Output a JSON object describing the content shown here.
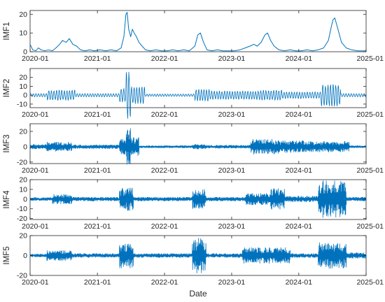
{
  "chart_data": [
    {
      "type": "line",
      "ylabel": "IMF1",
      "ylim": [
        0,
        22
      ],
      "yticks": [
        0,
        10,
        20
      ],
      "x_range": [
        "2020-01",
        "2025-01"
      ],
      "xticks": [
        "2020-01",
        "2021-01",
        "2022-01",
        "2023-01",
        "2024-01",
        "2025-01"
      ],
      "line_color": "#0072BD",
      "series": [
        {
          "x": [
            "2020-01-01",
            "2020-01-15",
            "2020-02-01",
            "2020-02-15",
            "2020-03-01",
            "2020-03-20",
            "2020-04-10",
            "2020-05-01",
            "2020-05-20",
            "2020-06-10",
            "2020-06-25",
            "2020-07-15",
            "2020-08-01",
            "2020-08-20",
            "2020-09-10",
            "2020-10-01",
            "2020-10-25",
            "2020-11-20",
            "2020-12-15",
            "2021-01-15",
            "2021-02-15",
            "2021-03-15",
            "2021-04-15",
            "2021-05-10",
            "2021-05-25",
            "2021-06-05",
            "2021-06-12",
            "2021-06-20",
            "2021-07-01",
            "2021-07-10",
            "2021-07-20",
            "2021-08-01",
            "2021-08-15",
            "2021-09-01",
            "2021-09-20",
            "2021-10-15",
            "2021-11-15",
            "2021-12-15",
            "2022-01-15",
            "2022-02-15",
            "2022-03-15",
            "2022-04-15",
            "2022-05-15",
            "2022-06-15",
            "2022-07-01",
            "2022-07-15",
            "2022-08-01",
            "2022-08-20",
            "2022-09-15",
            "2022-10-15",
            "2022-11-15",
            "2022-12-15",
            "2023-01-15",
            "2023-02-15",
            "2023-03-15",
            "2023-04-10",
            "2023-05-01",
            "2023-05-20",
            "2023-06-10",
            "2023-07-01",
            "2023-07-15",
            "2023-08-01",
            "2023-08-20",
            "2023-09-15",
            "2023-10-15",
            "2023-11-15",
            "2023-12-15",
            "2024-01-15",
            "2024-02-15",
            "2024-03-15",
            "2024-04-15",
            "2024-05-15",
            "2024-06-10",
            "2024-06-25",
            "2024-07-05",
            "2024-07-15",
            "2024-08-01",
            "2024-08-20",
            "2024-09-15",
            "2024-10-15",
            "2024-11-15",
            "2024-12-15",
            "2025-01-01"
          ],
          "y": [
            4,
            1,
            0.5,
            2,
            1,
            0.5,
            1,
            0.5,
            2,
            4,
            6,
            5,
            7,
            4,
            3,
            1,
            0.5,
            1,
            0.5,
            1,
            0.5,
            1,
            0.5,
            2,
            8,
            20,
            21,
            12,
            8,
            12,
            10,
            8,
            5,
            3,
            1,
            0.5,
            1,
            0.5,
            0.5,
            1,
            0.5,
            1,
            0.5,
            3,
            9,
            10,
            5,
            1,
            0.5,
            1,
            0.5,
            0.5,
            0.5,
            1,
            2,
            3,
            4,
            3,
            5,
            9,
            10,
            6,
            3,
            1,
            0.5,
            1,
            0.5,
            0.5,
            1,
            0.5,
            1,
            2,
            6,
            13,
            17,
            18,
            12,
            5,
            2,
            1,
            0.5,
            0.5,
            0.5
          ]
        }
      ]
    },
    {
      "type": "line",
      "ylabel": "IMF2",
      "ylim": [
        -14,
        30
      ],
      "yticks": [
        -10,
        0,
        10,
        20
      ],
      "x_range": [
        "2020-01",
        "2025-01"
      ],
      "xticks": [
        "2020-01",
        "2021-01",
        "2022-01",
        "2023-01",
        "2024-01",
        "2025-01"
      ],
      "line_color": "#0072BD",
      "oscillation_bursts": [
        {
          "start": "2020-01-01",
          "end": "2020-04-01",
          "amp": 2
        },
        {
          "start": "2020-04-01",
          "end": "2020-09-01",
          "amp": 6
        },
        {
          "start": "2020-09-01",
          "end": "2021-05-01",
          "amp": 2
        },
        {
          "start": "2021-05-01",
          "end": "2021-06-05",
          "amp": 8
        },
        {
          "start": "2021-06-05",
          "end": "2021-06-30",
          "amp": 28
        },
        {
          "start": "2021-06-30",
          "end": "2021-09-15",
          "amp": 10
        },
        {
          "start": "2021-09-15",
          "end": "2022-06-15",
          "amp": 1.5
        },
        {
          "start": "2022-06-15",
          "end": "2022-09-01",
          "amp": 7
        },
        {
          "start": "2022-09-01",
          "end": "2023-06-01",
          "amp": 5
        },
        {
          "start": "2023-06-01",
          "end": "2023-10-01",
          "amp": 6
        },
        {
          "start": "2023-10-01",
          "end": "2024-05-01",
          "amp": 4
        },
        {
          "start": "2024-05-01",
          "end": "2024-08-15",
          "amp": 13
        },
        {
          "start": "2024-08-15",
          "end": "2025-01-01",
          "amp": 2
        }
      ]
    },
    {
      "type": "line",
      "ylabel": "IMF3",
      "ylim": [
        -22,
        30
      ],
      "yticks": [
        -20,
        0,
        20
      ],
      "x_range": [
        "2020-01",
        "2025-01"
      ],
      "xticks": [
        "2020-01",
        "2021-01",
        "2022-01",
        "2023-01",
        "2024-01",
        "2025-01"
      ],
      "line_color": "#0072BD",
      "oscillation_bursts": [
        {
          "start": "2020-01-01",
          "end": "2020-04-01",
          "amp": 3
        },
        {
          "start": "2020-04-01",
          "end": "2020-08-15",
          "amp": 6
        },
        {
          "start": "2020-08-15",
          "end": "2021-05-01",
          "amp": 2.5
        },
        {
          "start": "2021-05-01",
          "end": "2021-06-05",
          "amp": 10
        },
        {
          "start": "2021-06-05",
          "end": "2021-06-30",
          "amp": 24
        },
        {
          "start": "2021-06-30",
          "end": "2021-08-15",
          "amp": 12
        },
        {
          "start": "2021-08-15",
          "end": "2022-06-01",
          "amp": 1.5
        },
        {
          "start": "2022-06-01",
          "end": "2022-08-15",
          "amp": 3
        },
        {
          "start": "2022-08-15",
          "end": "2023-04-15",
          "amp": 2
        },
        {
          "start": "2023-04-15",
          "end": "2023-09-15",
          "amp": 10
        },
        {
          "start": "2023-09-15",
          "end": "2024-02-01",
          "amp": 8
        },
        {
          "start": "2024-02-01",
          "end": "2024-10-01",
          "amp": 7
        },
        {
          "start": "2024-10-01",
          "end": "2025-01-01",
          "amp": 1.5
        }
      ]
    },
    {
      "type": "line",
      "ylabel": "IMF4",
      "ylim": [
        -21,
        20
      ],
      "yticks": [
        -20,
        -10,
        0,
        10,
        20
      ],
      "x_range": [
        "2020-01",
        "2025-01"
      ],
      "xticks": [
        "2020-01",
        "2021-01",
        "2022-01",
        "2023-01",
        "2024-01",
        "2025-01"
      ],
      "line_color": "#0072BD",
      "oscillation_bursts": [
        {
          "start": "2020-01-01",
          "end": "2020-05-01",
          "amp": 1.5
        },
        {
          "start": "2020-05-01",
          "end": "2020-08-15",
          "amp": 5
        },
        {
          "start": "2020-08-15",
          "end": "2021-05-01",
          "amp": 2
        },
        {
          "start": "2021-05-01",
          "end": "2021-07-15",
          "amp": 12
        },
        {
          "start": "2021-07-15",
          "end": "2022-06-01",
          "amp": 2
        },
        {
          "start": "2022-06-01",
          "end": "2022-08-15",
          "amp": 10
        },
        {
          "start": "2022-08-15",
          "end": "2023-03-15",
          "amp": 2
        },
        {
          "start": "2023-03-15",
          "end": "2023-08-01",
          "amp": 6
        },
        {
          "start": "2023-08-01",
          "end": "2023-10-15",
          "amp": 11
        },
        {
          "start": "2023-10-15",
          "end": "2024-04-15",
          "amp": 3
        },
        {
          "start": "2024-04-15",
          "end": "2024-09-15",
          "amp": 19
        },
        {
          "start": "2024-09-15",
          "end": "2025-01-01",
          "amp": 2
        }
      ]
    },
    {
      "type": "line",
      "ylabel": "IMF5",
      "ylim": [
        -20,
        20
      ],
      "yticks": [
        -20,
        0,
        20
      ],
      "x_range": [
        "2020-01",
        "2025-01"
      ],
      "xticks": [
        "2020-01",
        "2021-01",
        "2022-01",
        "2023-01",
        "2024-01",
        "2025-01"
      ],
      "xlabel": "Date",
      "line_color": "#0072BD",
      "oscillation_bursts": [
        {
          "start": "2020-01-01",
          "end": "2020-04-01",
          "amp": 1.5
        },
        {
          "start": "2020-04-01",
          "end": "2020-08-15",
          "amp": 5
        },
        {
          "start": "2020-08-15",
          "end": "2021-05-01",
          "amp": 2
        },
        {
          "start": "2021-05-01",
          "end": "2021-07-15",
          "amp": 13
        },
        {
          "start": "2021-07-15",
          "end": "2022-06-01",
          "amp": 2
        },
        {
          "start": "2022-06-01",
          "end": "2022-08-15",
          "amp": 18
        },
        {
          "start": "2022-08-15",
          "end": "2023-03-01",
          "amp": 2
        },
        {
          "start": "2023-03-01",
          "end": "2023-11-15",
          "amp": 8
        },
        {
          "start": "2023-11-15",
          "end": "2024-04-15",
          "amp": 2
        },
        {
          "start": "2024-04-15",
          "end": "2024-09-15",
          "amp": 13
        },
        {
          "start": "2024-09-15",
          "end": "2025-01-01",
          "amp": 3
        }
      ]
    }
  ]
}
